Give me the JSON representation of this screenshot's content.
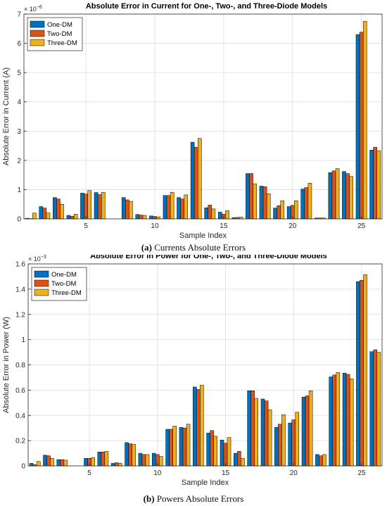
{
  "captions": [
    {
      "label": "(a)",
      "text": " Currents Absolute Errors"
    },
    {
      "label": "(b)",
      "text": " Powers Absolute Errors"
    }
  ],
  "colors": {
    "one_dm": "#0072BD",
    "two_dm": "#D95319",
    "three_dm": "#EDB120"
  },
  "chart_data": [
    {
      "type": "bar",
      "title": "Absolute Error in Current for One-, Two-, and Three-Diode Models",
      "xlabel": "Sample Index",
      "ylabel": "Absolute Error in Current (A)",
      "y_exponent_label": "× 10",
      "y_exponent": "−6",
      "ylim": [
        0,
        7
      ],
      "yticks": [
        0,
        1,
        2,
        3,
        4,
        5,
        6,
        7
      ],
      "xlim": [
        0.5,
        26.5
      ],
      "xticks": [
        5,
        10,
        15,
        20,
        25
      ],
      "grid": true,
      "legend_position": "top-left",
      "categories": [
        1,
        2,
        3,
        4,
        5,
        6,
        7,
        8,
        9,
        10,
        11,
        12,
        13,
        14,
        15,
        16,
        17,
        18,
        19,
        20,
        21,
        22,
        23,
        24,
        25,
        26
      ],
      "series": [
        {
          "name": "One-DM",
          "color": "#0072BD",
          "values": [
            0.02,
            0.42,
            0.73,
            0.12,
            0.88,
            0.9,
            0,
            0.73,
            0.15,
            0.1,
            0.8,
            0.73,
            2.62,
            0.38,
            0.23,
            0.04,
            1.55,
            1.12,
            0.37,
            0.42,
            1.02,
            0.03,
            1.58,
            1.62,
            6.3,
            2.35
          ]
        },
        {
          "name": "Two-DM",
          "color": "#D95319",
          "values": [
            0.01,
            0.37,
            0.68,
            0.09,
            0.85,
            0.83,
            0,
            0.65,
            0.13,
            0.08,
            0.8,
            0.68,
            2.45,
            0.47,
            0.16,
            0.05,
            1.55,
            1.1,
            0.45,
            0.46,
            1.07,
            0.03,
            1.64,
            1.55,
            6.38,
            2.45
          ]
        },
        {
          "name": "Three-DM",
          "color": "#EDB120",
          "values": [
            0.2,
            0.2,
            0.5,
            0.16,
            0.97,
            0.91,
            0,
            0.6,
            0.12,
            0.07,
            0.91,
            0.82,
            2.75,
            0.34,
            0.28,
            0.06,
            1.2,
            0.86,
            0.62,
            0.62,
            1.22,
            0.03,
            1.72,
            1.45,
            6.75,
            2.33
          ]
        }
      ]
    },
    {
      "type": "bar",
      "title": "Absolute Error in Power for One-, Two-, and Three-Diode Models",
      "xlabel": "Sample Index",
      "ylabel": "Absolute Error in Power (W)",
      "y_exponent_label": "× 10",
      "y_exponent": "−3",
      "ylim": [
        0,
        1.6
      ],
      "yticks": [
        0,
        0.2,
        0.4,
        0.6,
        0.8,
        1,
        1.2,
        1.4,
        1.6
      ],
      "xlim": [
        0.5,
        26.5
      ],
      "xticks": [
        5,
        10,
        15,
        20,
        25
      ],
      "grid": true,
      "legend_position": "top-left",
      "categories": [
        1,
        2,
        3,
        4,
        5,
        6,
        7,
        8,
        9,
        10,
        11,
        12,
        13,
        14,
        15,
        16,
        17,
        18,
        19,
        20,
        21,
        22,
        23,
        24,
        25,
        26
      ],
      "series": [
        {
          "name": "One-DM",
          "color": "#0072BD",
          "values": [
            0.02,
            0.085,
            0.05,
            0,
            0.06,
            0.11,
            0.02,
            0.185,
            0.1,
            0.1,
            0.29,
            0.305,
            0.625,
            0.26,
            0.205,
            0.1,
            0.595,
            0.53,
            0.305,
            0.34,
            0.545,
            0.09,
            0.705,
            0.735,
            1.46,
            0.905
          ]
        },
        {
          "name": "Two-DM",
          "color": "#D95319",
          "values": [
            0.01,
            0.08,
            0.05,
            0,
            0.06,
            0.11,
            0.025,
            0.175,
            0.09,
            0.09,
            0.29,
            0.3,
            0.605,
            0.28,
            0.18,
            0.115,
            0.595,
            0.515,
            0.33,
            0.365,
            0.555,
            0.08,
            0.72,
            0.725,
            1.47,
            0.92
          ]
        },
        {
          "name": "Three-DM",
          "color": "#EDB120",
          "values": [
            0.035,
            0.06,
            0.045,
            0,
            0.065,
            0.115,
            0.02,
            0.17,
            0.09,
            0.075,
            0.315,
            0.33,
            0.64,
            0.235,
            0.225,
            0.06,
            0.535,
            0.445,
            0.405,
            0.425,
            0.595,
            0.09,
            0.74,
            0.69,
            1.515,
            0.9
          ]
        }
      ]
    }
  ]
}
